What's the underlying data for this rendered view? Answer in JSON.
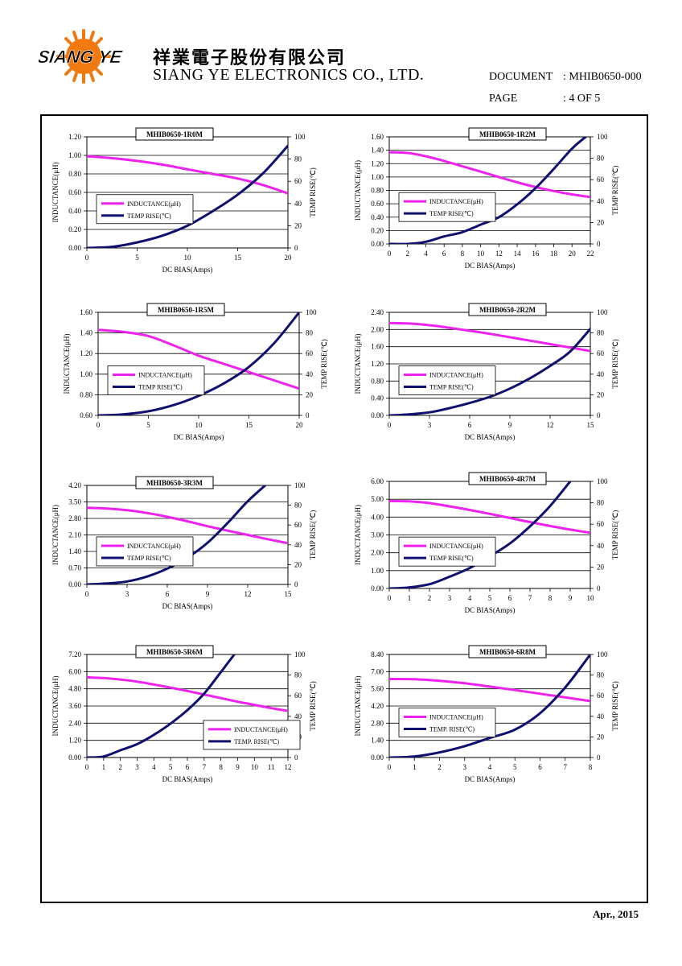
{
  "header": {
    "logo_text": "SIANG YE",
    "company_cn": "祥業電子股份有限公司",
    "company_en": "SIANG YE ELECTRONICS CO., LTD.",
    "document_label": "DOCUMENT",
    "document_value": ": MHIB0650-000",
    "page_label": "PAGE",
    "page_value": ": 4 OF 5"
  },
  "footer": {
    "date": "Apr., 2015"
  },
  "colors": {
    "inductance": "#ee22ee",
    "temp_rise": "#101070",
    "grid": "#000000"
  },
  "chart_data": [
    {
      "type": "line",
      "title": "MHIB0650-1R0M",
      "xlabel": "DC BIAS(Amps)",
      "ylabel": "INDUCTANCE(μH)",
      "y2label": "TEMP RISE(℃)",
      "xlim": [
        0,
        20
      ],
      "xticks": [
        0,
        5,
        10,
        15,
        20
      ],
      "ylim": [
        0,
        1.2
      ],
      "yticks": [
        "0.00",
        "0.20",
        "0.40",
        "0.60",
        "0.80",
        "1.00",
        "1.20"
      ],
      "y2lim": [
        0,
        100
      ],
      "y2ticks": [
        0,
        20,
        40,
        60,
        80,
        100
      ],
      "legend": "left-middle",
      "series": [
        {
          "name": "INDUCTANCE(μH)",
          "axis": "left",
          "x": [
            0,
            2.5,
            5,
            7.5,
            10,
            12.5,
            15,
            17.5,
            20
          ],
          "y": [
            0.99,
            0.97,
            0.94,
            0.9,
            0.85,
            0.8,
            0.75,
            0.68,
            0.59
          ]
        },
        {
          "name": "TEMP RISE(℃)",
          "axis": "right",
          "x": [
            0,
            2.5,
            5,
            7.5,
            10,
            12.5,
            15,
            17.5,
            20
          ],
          "y": [
            0,
            1,
            5,
            11,
            20,
            33,
            48,
            67,
            92
          ]
        }
      ]
    },
    {
      "type": "line",
      "title": "MHIB0650-1R2M",
      "xlabel": "DC BIAS(Amps)",
      "ylabel": "INDUCTANCE(μH)",
      "y2label": "TEMP RISE(℃)",
      "xlim": [
        0,
        22
      ],
      "xticks": [
        0,
        2,
        4,
        6,
        8,
        10,
        12,
        14,
        16,
        18,
        20,
        22
      ],
      "ylim": [
        0,
        1.6
      ],
      "yticks": [
        "0.00",
        "0.20",
        "0.40",
        "0.60",
        "0.80",
        "1.00",
        "1.20",
        "1.40",
        "1.60"
      ],
      "y2lim": [
        0,
        100
      ],
      "y2ticks": [
        0,
        20,
        40,
        60,
        80,
        100
      ],
      "legend": "left-middle",
      "series": [
        {
          "name": "INDUCTANCE(μH)",
          "axis": "left",
          "x": [
            0,
            2,
            4,
            6,
            8,
            10,
            12,
            14,
            16,
            18,
            20,
            22
          ],
          "y": [
            1.37,
            1.36,
            1.31,
            1.24,
            1.16,
            1.08,
            1.0,
            0.92,
            0.85,
            0.79,
            0.74,
            0.7
          ]
        },
        {
          "name": "TEMP RISE(℃)",
          "axis": "right",
          "x": [
            0,
            2,
            4,
            6,
            8,
            10,
            12,
            14,
            16,
            18,
            20,
            21.5
          ],
          "y": [
            0,
            0,
            2,
            7,
            11,
            18,
            25,
            37,
            52,
            70,
            89,
            100
          ]
        }
      ]
    },
    {
      "type": "line",
      "title": "MHIB0650-1R5M",
      "xlabel": "DC BIAS(Amps)",
      "ylabel": "INDUCTANCE(μH)",
      "y2label": "TEMP RISE(℃)",
      "xlim": [
        0,
        20
      ],
      "xticks": [
        0,
        5,
        10,
        15,
        20
      ],
      "ylim": [
        0.6,
        1.6
      ],
      "yticks": [
        "0.60",
        "0.80",
        "1.00",
        "1.20",
        "1.40",
        "1.60"
      ],
      "y2lim": [
        0,
        100
      ],
      "y2ticks": [
        0,
        20,
        40,
        60,
        80,
        100
      ],
      "legend": "left-middle",
      "series": [
        {
          "name": "INDUCTANCE(μH)",
          "axis": "left",
          "x": [
            0,
            2.5,
            5,
            7.5,
            10,
            12.5,
            15,
            17.5,
            20
          ],
          "y": [
            1.43,
            1.41,
            1.37,
            1.28,
            1.18,
            1.1,
            1.02,
            0.94,
            0.86
          ]
        },
        {
          "name": "TEMP RISE(℃)",
          "axis": "right",
          "x": [
            0,
            2.5,
            5,
            7.5,
            10,
            12.5,
            15,
            17.5,
            20
          ],
          "y": [
            0,
            1,
            4,
            10,
            19,
            31,
            47,
            70,
            100
          ]
        }
      ]
    },
    {
      "type": "line",
      "title": "MHIB0650-2R2M",
      "xlabel": "DC BIAS(Amps)",
      "ylabel": "INDUCTANCE(μH)",
      "y2label": "TEMP RISE(℃)",
      "xlim": [
        0,
        15
      ],
      "xticks": [
        0,
        3,
        6,
        9,
        12,
        15
      ],
      "ylim": [
        0,
        2.4
      ],
      "yticks": [
        "0.00",
        "0.40",
        "0.80",
        "1.20",
        "1.60",
        "2.00",
        "2.40"
      ],
      "y2lim": [
        0,
        100
      ],
      "y2ticks": [
        0,
        20,
        40,
        60,
        80,
        100
      ],
      "legend": "left-middle",
      "series": [
        {
          "name": "INDUCTANCE(μH)",
          "axis": "left",
          "x": [
            0,
            1.5,
            3,
            4.5,
            6,
            7.5,
            9,
            10.5,
            12,
            13.5,
            15
          ],
          "y": [
            2.15,
            2.14,
            2.1,
            2.04,
            1.97,
            1.9,
            1.82,
            1.74,
            1.66,
            1.58,
            1.5
          ]
        },
        {
          "name": "TEMP RISE(℃)",
          "axis": "right",
          "x": [
            0,
            1.5,
            3,
            4.5,
            6,
            7.5,
            9,
            10.5,
            12,
            13.5,
            15
          ],
          "y": [
            0,
            1,
            3,
            7,
            12,
            18,
            26,
            36,
            48,
            62,
            84
          ]
        }
      ]
    },
    {
      "type": "line",
      "title": "MHIB0650-3R3M",
      "xlabel": "DC BIAS(Amps)",
      "ylabel": "INDUCTANCE(μH)",
      "y2label": "TEMP RISE(℃)",
      "xlim": [
        0,
        15
      ],
      "xticks": [
        0,
        3,
        6,
        9,
        12,
        15
      ],
      "ylim": [
        0,
        4.2
      ],
      "yticks": [
        "0.00",
        "0.70",
        "1.40",
        "2.10",
        "2.80",
        "3.50",
        "4.20"
      ],
      "y2lim": [
        0,
        100
      ],
      "y2ticks": [
        0,
        20,
        40,
        60,
        80,
        100
      ],
      "legend": "left-middle",
      "series": [
        {
          "name": "INDUCTANCE(μH)",
          "axis": "left",
          "x": [
            0,
            1.5,
            3,
            4.5,
            6,
            7.5,
            9,
            10.5,
            12,
            13.5,
            15
          ],
          "y": [
            3.25,
            3.22,
            3.15,
            3.03,
            2.87,
            2.68,
            2.47,
            2.28,
            2.1,
            1.92,
            1.75
          ]
        },
        {
          "name": "TEMP RISE(℃)",
          "axis": "right",
          "x": [
            0,
            1.5,
            3,
            4.5,
            6,
            7.5,
            9,
            10.5,
            12,
            13.3
          ],
          "y": [
            0,
            1,
            3,
            8,
            16,
            27,
            42,
            62,
            84,
            100
          ]
        }
      ]
    },
    {
      "type": "line",
      "title": "MHIB0650-4R7M",
      "xlabel": "DC BIAS(Amps)",
      "ylabel": "INDUCTANCE(μH)",
      "y2label": "TEMP RISE(℃)",
      "xlim": [
        0,
        10
      ],
      "xticks": [
        0,
        1,
        2,
        3,
        4,
        5,
        6,
        7,
        8,
        9,
        10
      ],
      "ylim": [
        0,
        6
      ],
      "yticks": [
        "0.00",
        "1.00",
        "2.00",
        "3.00",
        "4.00",
        "5.00",
        "6.00"
      ],
      "y2lim": [
        0,
        100
      ],
      "y2ticks": [
        0,
        20,
        40,
        60,
        80,
        100
      ],
      "legend": "left-middle",
      "series": [
        {
          "name": "INDUCTANCE(μH)",
          "axis": "left",
          "x": [
            0,
            1,
            2,
            3,
            4,
            5,
            6,
            7,
            8,
            9,
            10
          ],
          "y": [
            4.9,
            4.88,
            4.78,
            4.6,
            4.4,
            4.18,
            3.95,
            3.72,
            3.5,
            3.3,
            3.12
          ]
        },
        {
          "name": "TEMP RISE(℃)",
          "axis": "right",
          "x": [
            0,
            1,
            2,
            3,
            4,
            5,
            6,
            7,
            8,
            9
          ],
          "y": [
            0,
            1,
            4,
            11,
            19,
            30,
            42,
            58,
            77,
            100
          ]
        }
      ]
    },
    {
      "type": "line",
      "title": "MHIB0650-5R6M",
      "xlabel": "DC BIAS(Amps)",
      "ylabel": "INDUCTANCE(μH)",
      "y2label": "TEMP RISE(℃)",
      "xlim": [
        0,
        12
      ],
      "xticks": [
        0,
        1,
        2,
        3,
        4,
        5,
        6,
        7,
        8,
        9,
        10,
        11,
        12
      ],
      "ylim": [
        0,
        7.2
      ],
      "yticks": [
        "0.00",
        "1.20",
        "2.40",
        "3.60",
        "4.80",
        "6.00",
        "7.20"
      ],
      "y2lim": [
        0,
        100
      ],
      "y2ticks": [
        0,
        20,
        40,
        60,
        80,
        100
      ],
      "legend": "right-lower",
      "series": [
        {
          "name": "INDUCTANCE(μH)",
          "axis": "left",
          "x": [
            0,
            1,
            2,
            3,
            4,
            5,
            6,
            7,
            8,
            9,
            10,
            11,
            12
          ],
          "y": [
            5.6,
            5.55,
            5.45,
            5.3,
            5.1,
            4.88,
            4.65,
            4.4,
            4.15,
            3.9,
            3.68,
            3.45,
            3.25
          ]
        },
        {
          "name": "TEMP. RISE(℃)",
          "axis": "right",
          "x": [
            0,
            1,
            2,
            3,
            4,
            5,
            6,
            7,
            8,
            8.8
          ],
          "y": [
            0,
            1,
            7,
            13,
            22,
            33,
            46,
            62,
            83,
            100
          ]
        }
      ]
    },
    {
      "type": "line",
      "title": "MHIB0650-6R8M",
      "xlabel": "DC BIAS(Amps)",
      "ylabel": "INDUCTANCE(μH)",
      "y2label": "TEMP RISE(℃)",
      "xlim": [
        0,
        8
      ],
      "xticks": [
        0,
        1,
        2,
        3,
        4,
        5,
        6,
        7,
        8
      ],
      "ylim": [
        0,
        8.4
      ],
      "yticks": [
        "0.00",
        "1.40",
        "2.80",
        "4.20",
        "5.60",
        "7.00",
        "8.40"
      ],
      "y2lim": [
        0,
        100
      ],
      "y2ticks": [
        0,
        20,
        40,
        60,
        80,
        100
      ],
      "legend": "left-middle",
      "series": [
        {
          "name": "INDUCTANCE(μH)",
          "axis": "left",
          "x": [
            0,
            1,
            2,
            3,
            4,
            5,
            6,
            7,
            8
          ],
          "y": [
            6.4,
            6.38,
            6.25,
            6.05,
            5.78,
            5.5,
            5.2,
            4.9,
            4.6
          ]
        },
        {
          "name": "TEMP. RISE(℃)",
          "axis": "right",
          "x": [
            0,
            1,
            2,
            3,
            4,
            5,
            6,
            7,
            8
          ],
          "y": [
            0,
            1,
            5,
            11,
            19,
            27,
            43,
            68,
            100
          ]
        }
      ]
    }
  ]
}
